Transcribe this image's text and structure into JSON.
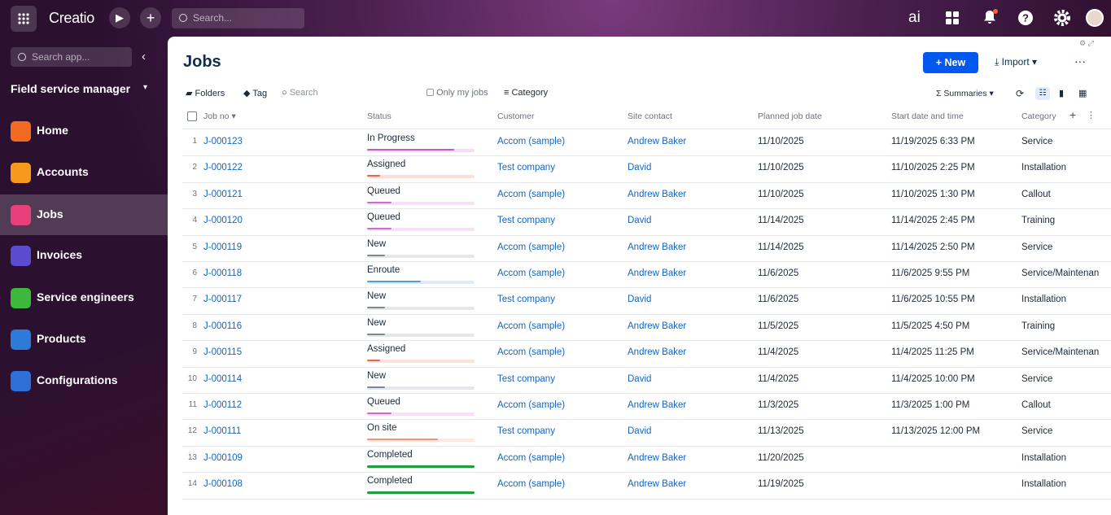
{
  "topbar": {
    "logo": "Creatio",
    "search_placeholder": "Search...",
    "ai": "ai"
  },
  "sidebar": {
    "search_placeholder": "Search app...",
    "app_title": "Field service manager",
    "nav": [
      "Home",
      "Accounts",
      "Jobs",
      "Invoices",
      "Service engineers",
      "Products",
      "Configurations"
    ]
  },
  "page": {
    "title": "Jobs",
    "new_button": "New",
    "import_button": "Import",
    "toolbar": {
      "folders": "Folders",
      "tag": "Tag",
      "search": "Search",
      "only_mine": "Only my jobs",
      "category": "Category",
      "summaries": "Summaries"
    }
  },
  "table": {
    "columns": [
      "Job no",
      "Status",
      "Customer",
      "Site contact",
      "Planned job date",
      "Start date and time",
      "Category"
    ],
    "rows": [
      {
        "no": "1",
        "job": "J-000123",
        "status": "In Progress",
        "status_progress": 81,
        "status_color": "#c55ac9",
        "customer": "Accom (sample)",
        "contact": "Andrew Baker",
        "planned": "11/10/2025",
        "start": "11/19/2025 6:33 PM",
        "category": "Service"
      },
      {
        "no": "2",
        "job": "J-000122",
        "status": "Assigned",
        "status_progress": 12,
        "status_color": "#f0654a",
        "customer": "Test company",
        "contact": "David",
        "planned": "11/10/2025",
        "start": "11/10/2025 2:25 PM",
        "category": "Installation"
      },
      {
        "no": "3",
        "job": "J-000121",
        "status": "Queued",
        "status_progress": 23,
        "status_color": "#d26ad6",
        "customer": "Accom (sample)",
        "contact": "Andrew Baker",
        "planned": "11/10/2025",
        "start": "11/10/2025 1:30 PM",
        "category": "Callout"
      },
      {
        "no": "4",
        "job": "J-000120",
        "status": "Queued",
        "status_progress": 23,
        "status_color": "#d26ad6",
        "customer": "Test company",
        "contact": "David",
        "planned": "11/14/2025",
        "start": "11/14/2025 2:45 PM",
        "category": "Training"
      },
      {
        "no": "5",
        "job": "J-000119",
        "status": "New",
        "status_progress": 17,
        "status_color": "#7b8a9a",
        "customer": "Accom (sample)",
        "contact": "Andrew Baker",
        "planned": "11/14/2025",
        "start": "11/14/2025 2:50 PM",
        "category": "Service"
      },
      {
        "no": "6",
        "job": "J-000118",
        "status": "Enroute",
        "status_progress": 50,
        "status_color": "#5b9bd5",
        "customer": "Accom (sample)",
        "contact": "Andrew Baker",
        "planned": "11/6/2025",
        "start": "11/6/2025 9:55 PM",
        "category": "Service/Maintenan"
      },
      {
        "no": "7",
        "job": "J-000117",
        "status": "New",
        "status_progress": 17,
        "status_color": "#7b8a9a",
        "customer": "Test company",
        "contact": "David",
        "planned": "11/6/2025",
        "start": "11/6/2025 10:55 PM",
        "category": "Installation"
      },
      {
        "no": "8",
        "job": "J-000116",
        "status": "New",
        "status_progress": 17,
        "status_color": "#7b8a9a",
        "customer": "Accom (sample)",
        "contact": "Andrew Baker",
        "planned": "11/5/2025",
        "start": "11/5/2025 4:50 PM",
        "category": "Training"
      },
      {
        "no": "9",
        "job": "J-000115",
        "status": "Assigned",
        "status_progress": 12,
        "status_color": "#f0654a",
        "customer": "Accom (sample)",
        "contact": "Andrew Baker",
        "planned": "11/4/2025",
        "start": "11/4/2025 11:25 PM",
        "category": "Service/Maintenan"
      },
      {
        "no": "10",
        "job": "J-000114",
        "status": "New",
        "status_progress": 17,
        "status_color": "#7b8a9a",
        "customer": "Test company",
        "contact": "David",
        "planned": "11/4/2025",
        "start": "11/4/2025 10:00 PM",
        "category": "Service"
      },
      {
        "no": "11",
        "job": "J-000112",
        "status": "Queued",
        "status_progress": 23,
        "status_color": "#d26ad6",
        "customer": "Accom (sample)",
        "contact": "Andrew Baker",
        "planned": "11/3/2025",
        "start": "11/3/2025 1:00 PM",
        "category": "Callout"
      },
      {
        "no": "12",
        "job": "J-000111",
        "status": "On site",
        "status_progress": 66,
        "status_color": "#f39477",
        "customer": "Test company",
        "contact": "David",
        "planned": "11/13/2025",
        "start": "11/13/2025 12:00 PM",
        "category": "Service"
      },
      {
        "no": "13",
        "job": "J-000109",
        "status": "Completed",
        "status_progress": 100,
        "status_color": "#1f9d3a",
        "customer": "Accom (sample)",
        "contact": "Andrew Baker",
        "planned": "11/20/2025",
        "start": null,
        "category": "Installation"
      },
      {
        "no": "14",
        "job": "J-000108",
        "status": "Completed",
        "status_progress": 100,
        "status_color": "#1f9d3a",
        "customer": "Accom (sample)",
        "contact": "Andrew Baker",
        "planned": "11/19/2025",
        "start": null,
        "category": "Installation"
      }
    ]
  }
}
